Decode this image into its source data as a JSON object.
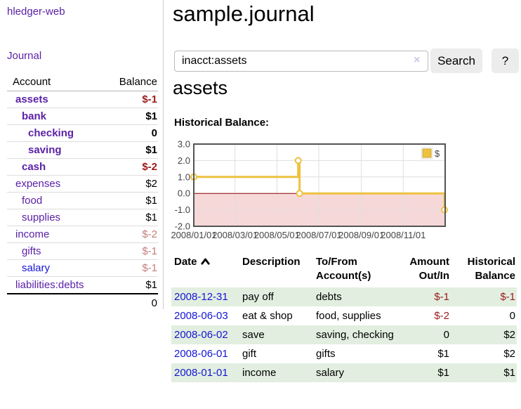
{
  "colors": {
    "link_purple": "#5b21a8",
    "link_blue": "#1414d6",
    "negative_red": "#9b1b1b",
    "dimmed_negative_red": "#c47c7c",
    "row_stripe_green": "#e2efe0",
    "series_gold": "#edc240"
  },
  "app": {
    "title": "hledger-web"
  },
  "sidebar": {
    "nav": {
      "journal": "Journal"
    },
    "table": {
      "headers": {
        "account": "Account",
        "balance": "Balance"
      },
      "accounts": [
        {
          "name": "assets",
          "balance": "$-1"
        },
        {
          "name": "bank",
          "balance": "$1"
        },
        {
          "name": "checking",
          "balance": "0"
        },
        {
          "name": "saving",
          "balance": "$1"
        },
        {
          "name": "cash",
          "balance": "$-2"
        },
        {
          "name": "expenses",
          "balance": "$2"
        },
        {
          "name": "food",
          "balance": "$1"
        },
        {
          "name": "supplies",
          "balance": "$1"
        },
        {
          "name": "income",
          "balance": "$-2"
        },
        {
          "name": "gifts",
          "balance": "$-1"
        },
        {
          "name": "salary",
          "balance": "$-1"
        },
        {
          "name": "liabilities:debts",
          "balance": "$1"
        }
      ],
      "total": "0"
    }
  },
  "main": {
    "title": "sample.journal",
    "search": {
      "value": "inacct:assets",
      "clear_icon": "×",
      "search_button": "Search",
      "help_button": "?"
    },
    "register": {
      "heading": "assets",
      "chart_label": "Historical Balance:"
    }
  },
  "chart_data": {
    "type": "line",
    "step": true,
    "title": "Historical Balance of assets",
    "x_domain": [
      "2008-01-01",
      "2009-01-01"
    ],
    "ylim": [
      -2,
      3
    ],
    "y_ticks": [
      {
        "v": 3,
        "label": "3.0"
      },
      {
        "v": 2,
        "label": "2.0"
      },
      {
        "v": 1,
        "label": "1.0"
      },
      {
        "v": 0,
        "label": "0.0"
      },
      {
        "v": -1,
        "label": "-1.0"
      },
      {
        "v": -2,
        "label": "-2.0"
      }
    ],
    "x_ticks": [
      {
        "date": "2008-01-01",
        "label": "2008/01/01"
      },
      {
        "date": "2008-03-01",
        "label": "2008/03/01"
      },
      {
        "date": "2008-05-01",
        "label": "2008/05/01"
      },
      {
        "date": "2008-07-01",
        "label": "2008/07/01"
      },
      {
        "date": "2008-09-01",
        "label": "2008/09/01"
      },
      {
        "date": "2008-11-01",
        "label": "2008/11/01"
      }
    ],
    "series": [
      {
        "name": "$",
        "color": "#edc240",
        "points": [
          [
            "2008-01-01",
            1
          ],
          [
            "2008-06-01",
            2
          ],
          [
            "2008-06-03",
            0
          ],
          [
            "2008-12-31",
            -1
          ]
        ]
      }
    ],
    "legend": {
      "label": "$",
      "position": "top-right"
    },
    "grid": true,
    "zero_line_color": "#8b0000",
    "negative_region_color": "#f7d8d8",
    "border_color": "#545454"
  },
  "table": {
    "headers": {
      "date": "Date",
      "description": "Description",
      "tofrom": "To/From Account(s)",
      "amount": "Amount Out/In",
      "balance": "Historical Balance"
    },
    "rows": [
      {
        "date": "2008-12-31",
        "description": "pay off",
        "accounts": "debts",
        "amount": "$-1",
        "balance": "$-1"
      },
      {
        "date": "2008-06-03",
        "description": "eat & shop",
        "accounts": "food, supplies",
        "amount": "$-2",
        "balance": "0"
      },
      {
        "date": "2008-06-02",
        "description": "save",
        "accounts": "saving, checking",
        "amount": "0",
        "balance": "$2"
      },
      {
        "date": "2008-06-01",
        "description": "gift",
        "accounts": "gifts",
        "amount": "$1",
        "balance": "$2"
      },
      {
        "date": "2008-01-01",
        "description": "income",
        "accounts": "salary",
        "amount": "$1",
        "balance": "$1"
      }
    ]
  }
}
